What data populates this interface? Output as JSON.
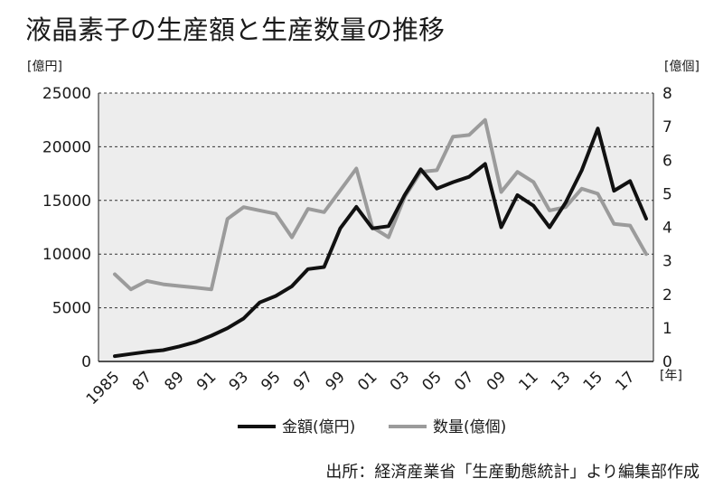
{
  "chart_data": {
    "type": "line",
    "title": "液晶素子の生産額と生産数量の推移",
    "source": "出所：経済産業省「生産動態統計」より編集部作成",
    "x": [
      1985,
      1986,
      1987,
      1988,
      1989,
      1990,
      1991,
      1992,
      1993,
      1994,
      1995,
      1996,
      1997,
      1998,
      1999,
      2000,
      2001,
      2002,
      2003,
      2004,
      2005,
      2006,
      2007,
      2008,
      2009,
      2010,
      2011,
      2012,
      2013,
      2014,
      2015,
      2016,
      2017,
      2018
    ],
    "x_tick_labels": [
      "1985",
      "87",
      "89",
      "91",
      "93",
      "95",
      "97",
      "99",
      "01",
      "03",
      "05",
      "07",
      "09",
      "11",
      "13",
      "15",
      "17"
    ],
    "x_unit": "[年]",
    "y_left": {
      "unit": "[億円]",
      "ylim": [
        0,
        25000
      ],
      "ticks": [
        "0",
        "5000",
        "10000",
        "15000",
        "20000",
        "25000"
      ]
    },
    "y_right": {
      "unit": "[億個]",
      "ylim": [
        0,
        8
      ],
      "ticks": [
        "0",
        "1",
        "2",
        "3",
        "4",
        "5",
        "6",
        "7",
        "8"
      ]
    },
    "grid": "horizontal dashed",
    "legend_position": "bottom",
    "series": [
      {
        "name": "金額(億円)",
        "axis": "left",
        "color": "#111111",
        "values": [
          500,
          700,
          900,
          1050,
          1400,
          1800,
          2400,
          3100,
          4000,
          5500,
          6100,
          7000,
          8600,
          8800,
          12400,
          14400,
          12400,
          12600,
          15500,
          17900,
          16100,
          16700,
          17200,
          18400,
          12500,
          15500,
          14500,
          12500,
          14800,
          17800,
          21700,
          15900,
          16800,
          13300
        ]
      },
      {
        "name": "数量(億個)",
        "axis": "right",
        "color": "#9b9b9b",
        "values": [
          2.6,
          2.15,
          2.4,
          2.3,
          2.25,
          2.2,
          2.15,
          4.25,
          4.6,
          4.5,
          4.4,
          3.7,
          4.55,
          4.45,
          5.1,
          5.75,
          4.0,
          3.7,
          4.9,
          5.65,
          5.7,
          6.7,
          6.75,
          7.2,
          5.05,
          5.65,
          5.35,
          4.5,
          4.6,
          5.15,
          5.0,
          4.1,
          4.05,
          3.2
        ]
      }
    ]
  }
}
